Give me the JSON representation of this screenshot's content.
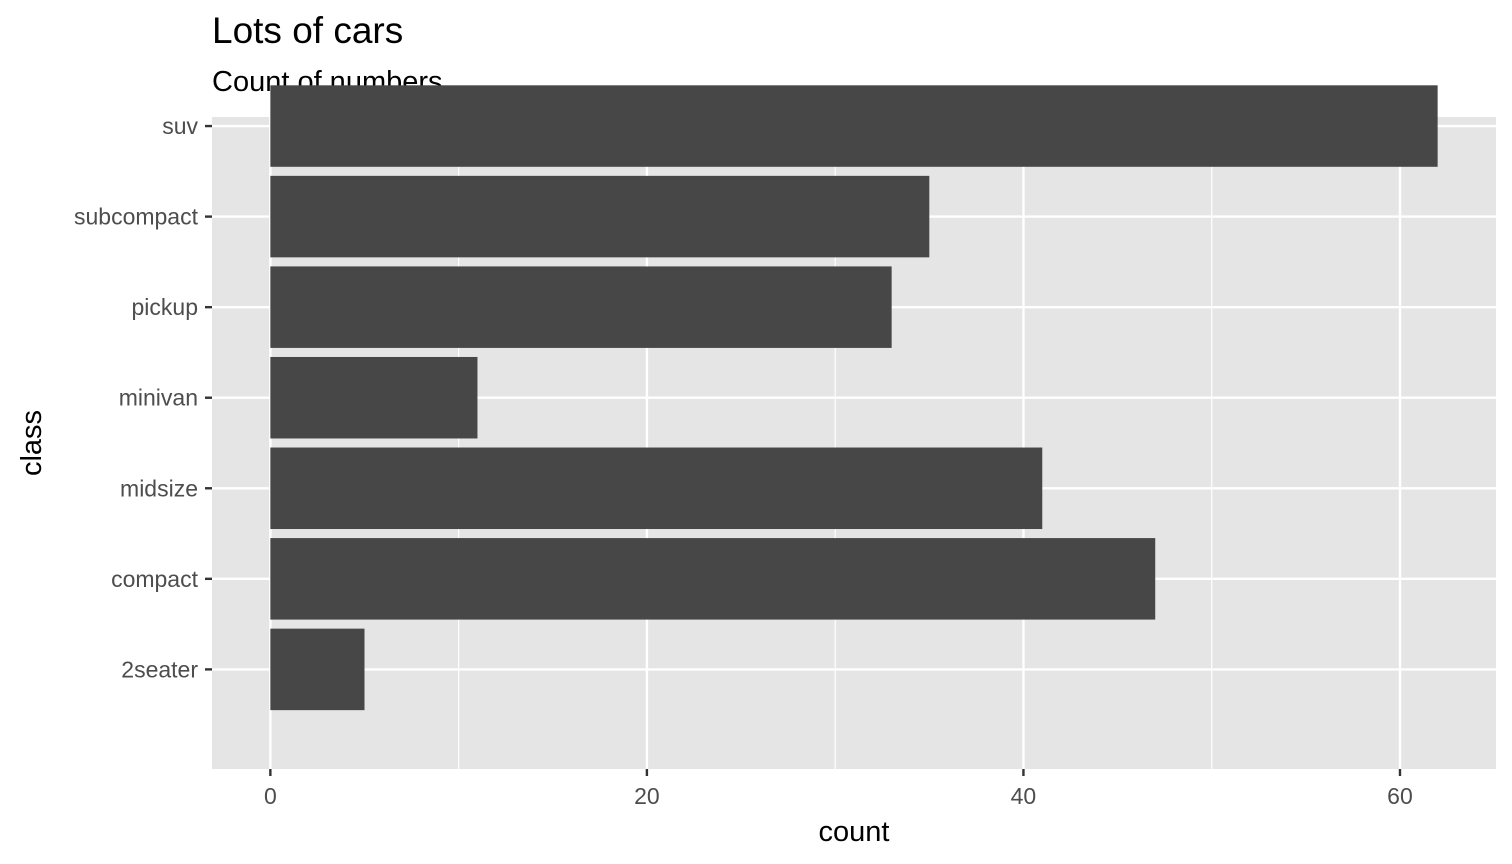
{
  "chart_data": {
    "type": "bar",
    "orientation": "horizontal",
    "title": "Lots of cars",
    "subtitle": "Count of numbers",
    "xlabel": "count",
    "ylabel": "class",
    "categories": [
      "2seater",
      "compact",
      "midsize",
      "minivan",
      "pickup",
      "subcompact",
      "suv"
    ],
    "values": [
      5,
      47,
      41,
      11,
      33,
      35,
      62
    ],
    "xlim": [
      -3.1,
      65.1
    ],
    "xticks": [
      0,
      20,
      40,
      60
    ],
    "grid": true,
    "legend": "none",
    "colors": {
      "bar": "#474747",
      "panel": "#e5e5e5",
      "grid": "#ffffff",
      "tick": "#333333"
    }
  }
}
